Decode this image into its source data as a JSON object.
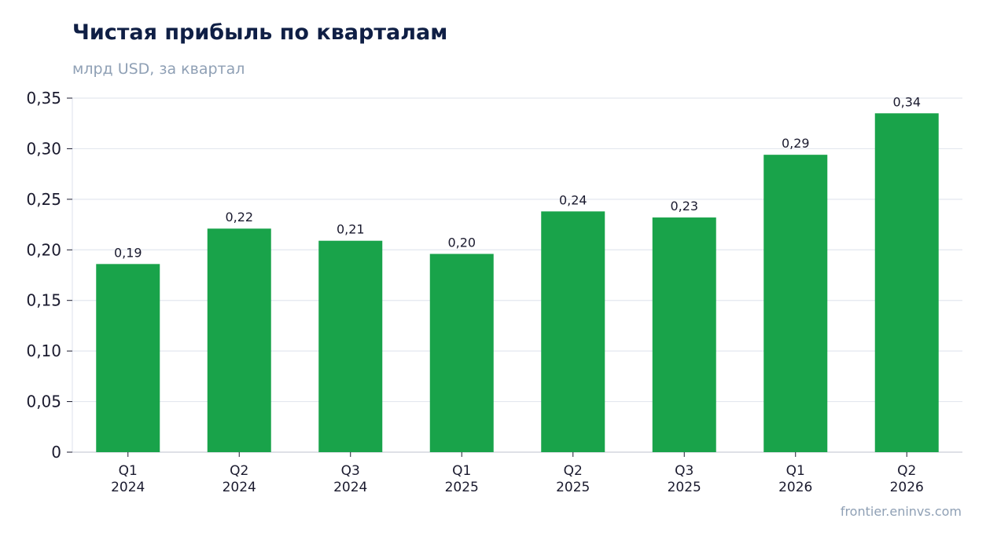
{
  "header": {
    "title": "Чистая прибыль по кварталам",
    "subtitle": "млрд USD, за квартал"
  },
  "footer": {
    "source": "frontier.eninvs.com"
  },
  "chart_data": {
    "type": "bar",
    "title": "Чистая прибыль по кварталам",
    "subtitle": "млрд USD, за квартал",
    "xlabel": "",
    "ylabel": "",
    "categories": [
      "Q1 2024",
      "Q2 2024",
      "Q3 2024",
      "Q1 2025",
      "Q2 2025",
      "Q3 2025",
      "Q1 2026",
      "Q2 2026"
    ],
    "values": [
      0.186,
      0.221,
      0.209,
      0.196,
      0.238,
      0.232,
      0.294,
      0.335
    ],
    "data_labels": [
      "0,19",
      "0,22",
      "0,21",
      "0,20",
      "0,24",
      "0,23",
      "0,29",
      "0,34"
    ],
    "ylim": [
      0,
      0.35
    ],
    "yticks": [
      0,
      0.05,
      0.1,
      0.15,
      0.2,
      0.25,
      0.3,
      0.35
    ],
    "ytick_labels": [
      "0",
      "0,05",
      "0,10",
      "0,15",
      "0,20",
      "0,25",
      "0,30",
      "0,35"
    ],
    "grid": true,
    "legend": "none",
    "colors": {
      "bar": "#19a34a",
      "grid": "#e3e7ef",
      "axis": "#c9ced8",
      "text": "#1a1a2e"
    }
  }
}
